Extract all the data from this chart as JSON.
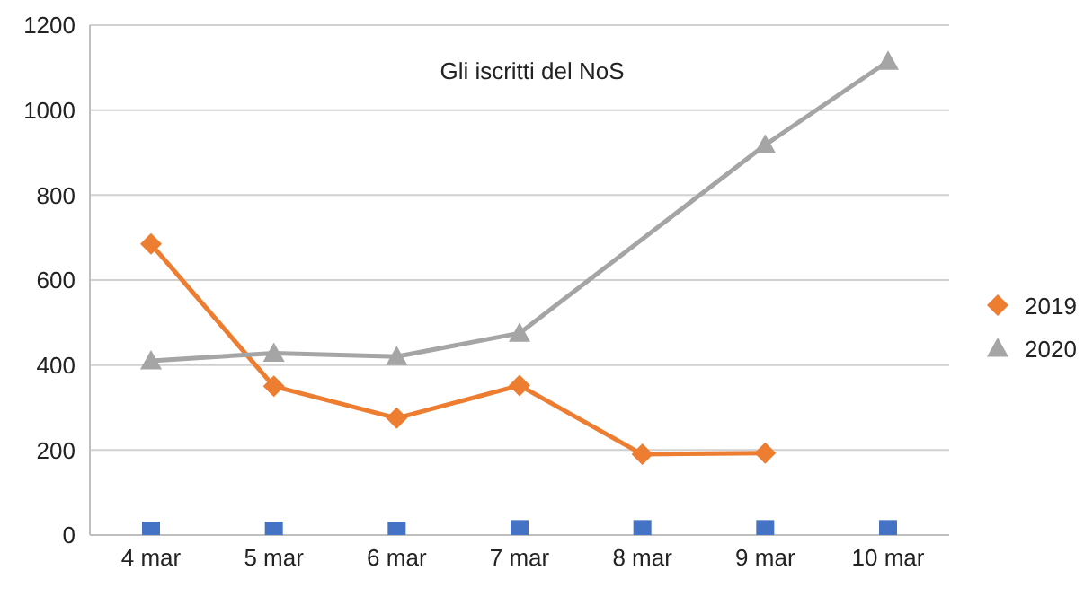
{
  "chart_data": {
    "type": "line",
    "title": "Gli iscritti del NoS",
    "categories": [
      "4 mar",
      "5 mar",
      "6 mar",
      "7 mar",
      "8 mar",
      "9 mar",
      "10 mar"
    ],
    "series": [
      {
        "name": "2019",
        "color": "#ed7d31",
        "marker": "diamond",
        "values": [
          685,
          350,
          275,
          352,
          190,
          193,
          null
        ]
      },
      {
        "name": "2020",
        "color": "#a5a5a5",
        "marker": "triangle",
        "values": [
          410,
          428,
          420,
          475,
          null,
          918,
          1115
        ]
      },
      {
        "type": "scatter",
        "color": "#4472c4",
        "marker": "square",
        "values": [
          10,
          10,
          10,
          14,
          14,
          14,
          14
        ]
      }
    ],
    "ylim": [
      0,
      1200
    ],
    "yticks": [
      0,
      200,
      400,
      600,
      800,
      1000,
      1200
    ],
    "grid": "y",
    "legend": "right"
  }
}
